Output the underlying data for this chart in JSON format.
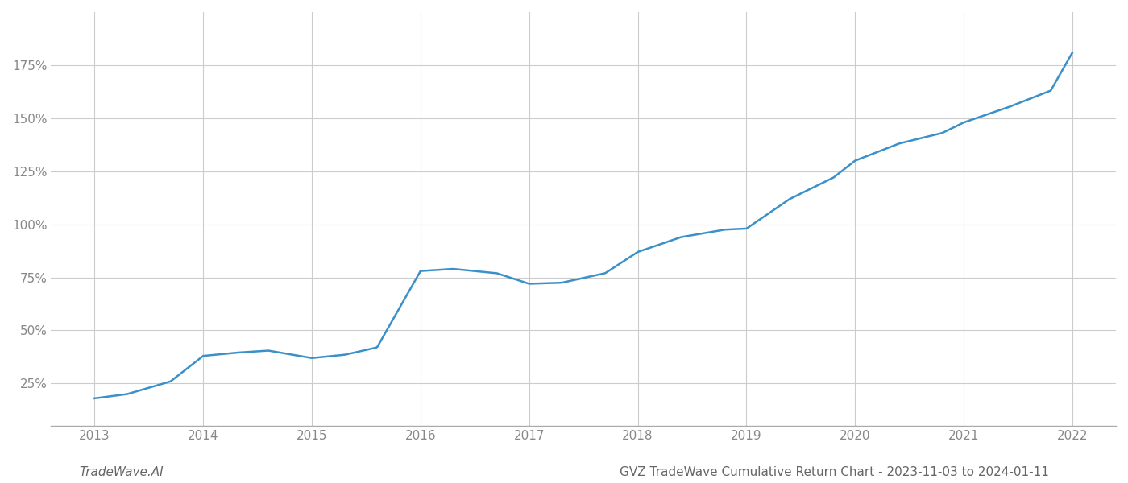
{
  "title": "",
  "x_years": [
    2013.0,
    2013.3,
    2013.7,
    2014.0,
    2014.3,
    2014.6,
    2015.0,
    2015.3,
    2015.6,
    2016.0,
    2016.3,
    2016.7,
    2017.0,
    2017.3,
    2017.7,
    2018.0,
    2018.4,
    2018.8,
    2019.0,
    2019.4,
    2019.8,
    2020.0,
    2020.4,
    2020.8,
    2021.0,
    2021.4,
    2021.8,
    2022.0
  ],
  "y_values": [
    18.0,
    20.0,
    26.0,
    38.0,
    39.5,
    40.5,
    37.0,
    38.5,
    42.0,
    78.0,
    79.0,
    77.0,
    72.0,
    72.5,
    77.0,
    87.0,
    94.0,
    97.5,
    98.0,
    112.0,
    122.0,
    130.0,
    138.0,
    143.0,
    148.0,
    155.0,
    163.0,
    181.0
  ],
  "line_color": "#3a90c8",
  "line_width": 1.8,
  "background_color": "#ffffff",
  "grid_color": "#cccccc",
  "yticks": [
    25,
    50,
    75,
    100,
    125,
    150,
    175
  ],
  "ylim": [
    5,
    200
  ],
  "xlim": [
    2012.6,
    2022.4
  ],
  "xlabel_fontsize": 11,
  "ylabel_fontsize": 11,
  "footer_left": "TradeWave.AI",
  "footer_right": "GVZ TradeWave Cumulative Return Chart - 2023-11-03 to 2024-01-11",
  "footer_fontsize": 11,
  "footer_color": "#666666",
  "tick_color": "#888888"
}
